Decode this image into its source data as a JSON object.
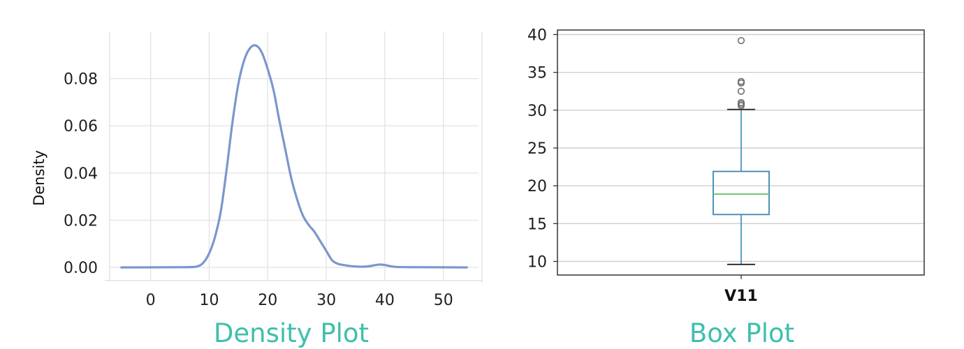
{
  "chart_data": [
    {
      "type": "line",
      "title": "Density Plot",
      "xlabel": "",
      "ylabel": "Density",
      "xlim": [
        -7,
        56
      ],
      "ylim": [
        -0.005,
        0.1
      ],
      "xticks": [
        0,
        10,
        20,
        30,
        40,
        50
      ],
      "yticks": [
        0.0,
        0.02,
        0.04,
        0.06,
        0.08
      ],
      "ytick_labels": [
        "0.00",
        "0.02",
        "0.04",
        "0.06",
        "0.08"
      ],
      "grid": true,
      "legend": "none",
      "line_color": "#7b97cc",
      "series": [
        {
          "x": [
            -5,
            6,
            8,
            9,
            10,
            11,
            12,
            13,
            14,
            15,
            16,
            17,
            18,
            19,
            20,
            21,
            22,
            23,
            24,
            25,
            26,
            27,
            28,
            29,
            30,
            31,
            32,
            33,
            34,
            35,
            36,
            37,
            38,
            39,
            40,
            41,
            42,
            45,
            54
          ],
          "y": [
            0,
            0.0001,
            0.0005,
            0.002,
            0.006,
            0.013,
            0.024,
            0.042,
            0.062,
            0.078,
            0.088,
            0.093,
            0.094,
            0.091,
            0.084,
            0.075,
            0.062,
            0.05,
            0.038,
            0.029,
            0.022,
            0.018,
            0.015,
            0.011,
            0.007,
            0.003,
            0.0015,
            0.001,
            0.0006,
            0.0004,
            0.0003,
            0.0004,
            0.0008,
            0.0012,
            0.001,
            0.0005,
            0.0002,
            0.0001,
            0
          ]
        }
      ]
    },
    {
      "type": "box",
      "title": "Box Plot",
      "xlabel": "",
      "ylabel": "",
      "categories": [
        "V11"
      ],
      "ylim": [
        8.2,
        40.6
      ],
      "yticks": [
        10,
        15,
        20,
        25,
        30,
        35,
        40
      ],
      "grid": true,
      "legend": "none",
      "box": {
        "whisker_low": 9.6,
        "q1": 16.2,
        "median": 18.9,
        "q3": 21.9,
        "whisker_high": 30.1,
        "outliers": [
          30.6,
          30.8,
          31.0,
          32.5,
          33.6,
          33.8,
          39.2
        ]
      },
      "colors": {
        "box": "#3a86b5",
        "median": "#67c562",
        "whisker": "#3a86b5",
        "outlier": "#6f6f6f"
      }
    }
  ]
}
